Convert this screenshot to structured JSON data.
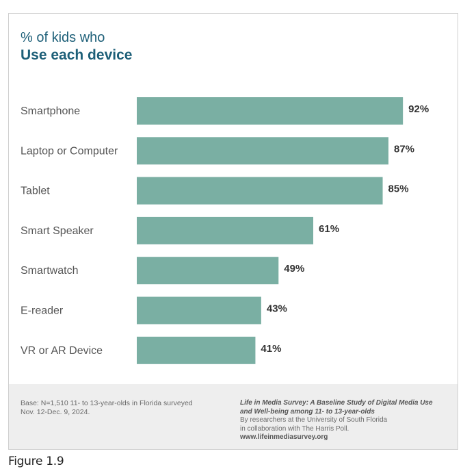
{
  "header": {
    "title_line1": "% of kids who",
    "title_line2": "Use each device"
  },
  "colors": {
    "bar": "#7aafa3",
    "title": "#1d5f78",
    "label": "#555555",
    "value": "#333333",
    "footer_bg": "#eeeeee"
  },
  "chart_data": {
    "type": "bar",
    "orientation": "horizontal",
    "title": "% of kids who Use each device",
    "categories": [
      "Smartphone",
      "Laptop or Computer",
      "Tablet",
      "Smart Speaker",
      "Smartwatch",
      "E-reader",
      "VR or AR Device"
    ],
    "values": [
      92,
      87,
      85,
      61,
      49,
      43,
      41
    ],
    "value_labels": [
      "92%",
      "87%",
      "85%",
      "61%",
      "49%",
      "43%",
      "41%"
    ],
    "unit": "%",
    "xlim": [
      0,
      100
    ],
    "grid": false,
    "legend": "none"
  },
  "footer": {
    "base_line1": "Base: N=1,510 11- to 13-year-olds in Florida surveyed",
    "base_line2": "Nov. 12-Dec. 9, 2024.",
    "source_title_line1": "Life in Media Survey: A Baseline Study of Digital Media Use",
    "source_title_line2": "and Well-being among 11- to 13-year-olds",
    "source_line1": "By researchers at the University of South Florida",
    "source_line2": "in collaboration with The Harris Poll.",
    "url": "www.lifeinmediasurvey.org"
  },
  "caption": "Figure 1.9"
}
